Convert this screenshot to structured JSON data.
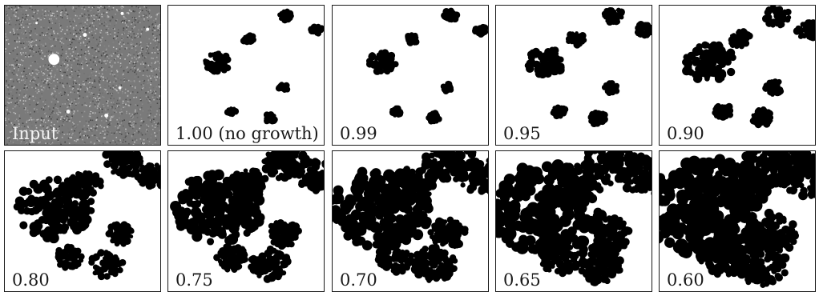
{
  "panels": [
    {
      "label": "Input",
      "kind": "input"
    },
    {
      "label": "1.00 (no growth)",
      "kind": "mask",
      "growth": 1.0
    },
    {
      "label": "0.99",
      "kind": "mask",
      "growth": 0.99
    },
    {
      "label": "0.95",
      "kind": "mask",
      "growth": 0.95
    },
    {
      "label": "0.90",
      "kind": "mask",
      "growth": 0.9
    },
    {
      "label": "0.80",
      "kind": "mask",
      "growth": 0.8
    },
    {
      "label": "0.75",
      "kind": "mask",
      "growth": 0.75
    },
    {
      "label": "0.70",
      "kind": "mask",
      "growth": 0.7
    },
    {
      "label": "0.65",
      "kind": "mask",
      "growth": 0.65
    },
    {
      "label": "0.60",
      "kind": "mask",
      "growth": 0.6
    }
  ],
  "colors": {
    "foreground": "#000000",
    "background": "#ffffff",
    "border": "#1a1a1a",
    "noise": "#7a7a7a"
  }
}
